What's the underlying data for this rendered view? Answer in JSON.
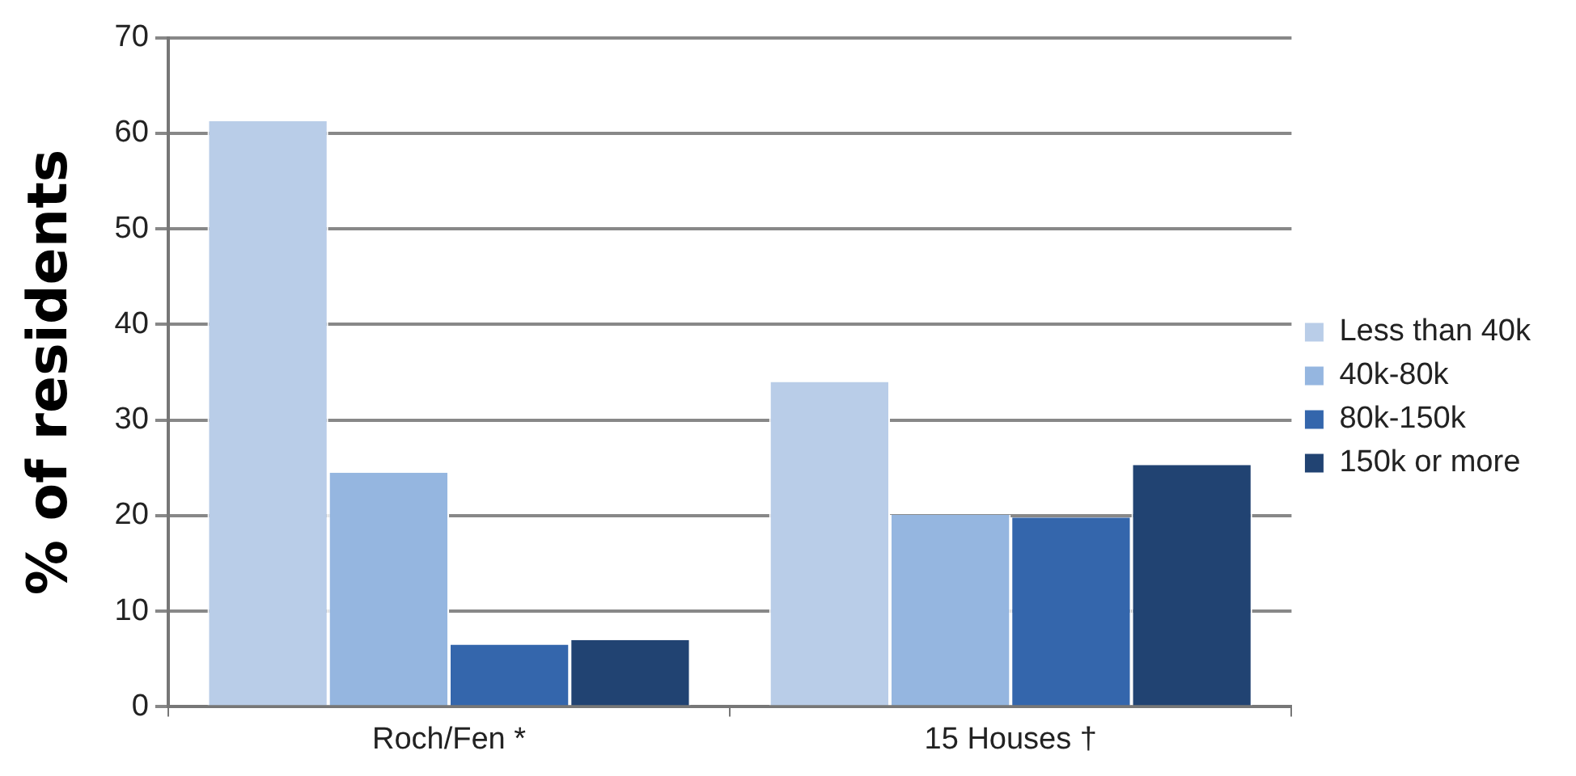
{
  "chart_data": {
    "type": "bar",
    "ylabel": "% of residents",
    "categories": [
      "Roch/Fen *",
      "15 Houses †"
    ],
    "series": [
      {
        "name": "Less than 40k",
        "color": "#b9cde8",
        "values": [
          61.3,
          34.0
        ]
      },
      {
        "name": "40k-80k",
        "color": "#95b6e0",
        "values": [
          24.5,
          20.1
        ]
      },
      {
        "name": "80k-150k",
        "color": "#3466ac",
        "values": [
          6.5,
          19.8
        ]
      },
      {
        "name": "150k or more",
        "color": "#214372",
        "values": [
          7.0,
          25.3
        ]
      }
    ],
    "ylim": [
      0,
      70
    ],
    "yticks": [
      0,
      10,
      20,
      30,
      40,
      50,
      60,
      70
    ],
    "grid": "y",
    "legend": "right"
  }
}
